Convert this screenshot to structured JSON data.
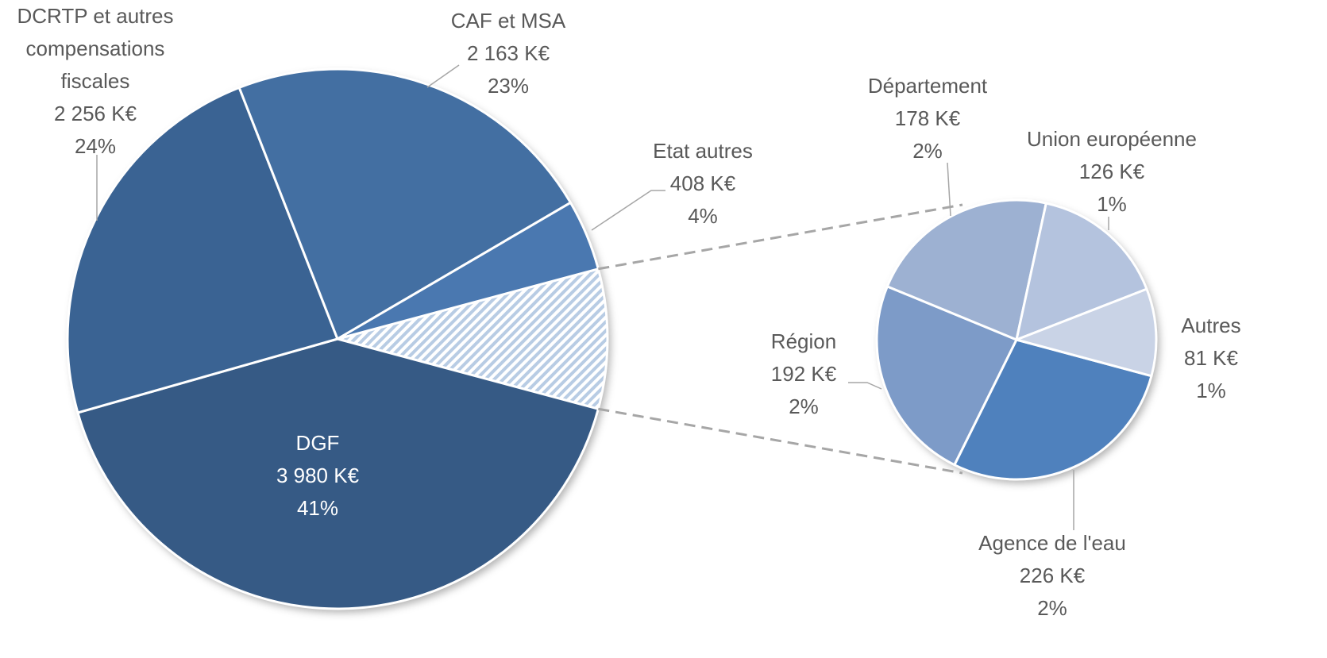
{
  "chart_data": {
    "type": "pie_of_pie",
    "main": {
      "categories": [
        "DGF",
        "DCRTP et autres compensations fiscales",
        "CAF et MSA",
        "Etat autres"
      ],
      "values": [
        3980,
        2256,
        2163,
        408
      ],
      "value_labels": [
        "3 980 K€",
        "2 256 K€",
        "2 163 K€",
        "408 K€"
      ],
      "percent_labels": [
        "41%",
        "24%",
        "23%",
        "4%"
      ],
      "colors": [
        "#365a85",
        "#3a6393",
        "#436fa2",
        "#4a78b0"
      ]
    },
    "secondary": {
      "categories": [
        "Agence de l'eau",
        "Région",
        "Département",
        "Union européenne",
        "Autres"
      ],
      "values": [
        226,
        192,
        178,
        126,
        81
      ],
      "value_labels": [
        "226 K€",
        "192 K€",
        "178 K€",
        "126 K€",
        "81 K€"
      ],
      "percent_labels": [
        "2%",
        "2%",
        "2%",
        "1%",
        "1%"
      ],
      "colors": [
        "#4f81bd",
        "#7d9bc8",
        "#9db1d2",
        "#b4c3de",
        "#c9d3e6"
      ]
    }
  }
}
